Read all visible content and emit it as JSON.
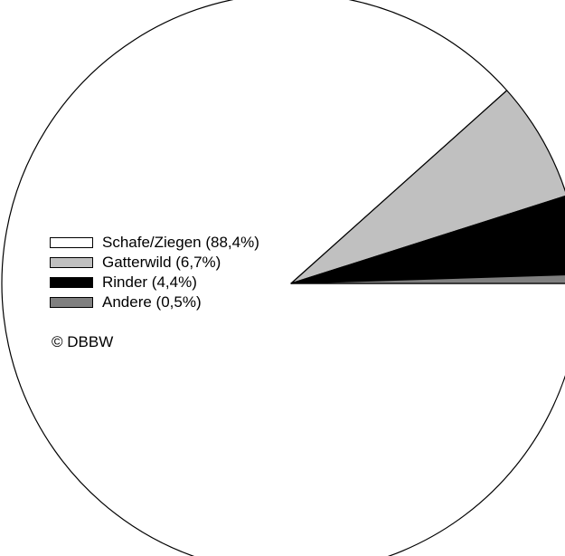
{
  "chart_data": {
    "type": "pie",
    "title": "",
    "categories": [
      "Schafe/Ziegen",
      "Gatterwild",
      "Rinder",
      "Andere"
    ],
    "values": [
      88.4,
      6.7,
      4.4,
      0.5
    ],
    "colors": [
      "#ffffff",
      "#c0c0c0",
      "#000000",
      "#808080"
    ],
    "legend": {
      "placement": "left",
      "labels": [
        "Schafe/Ziegen (88,4%)",
        "Gatterwild (6,7%)",
        "Rinder (4,4%)",
        "Andere (0,5%)"
      ]
    },
    "start_angle_deg": 0,
    "direction": "clockwise-from-east"
  },
  "copyright": "© DBBW"
}
